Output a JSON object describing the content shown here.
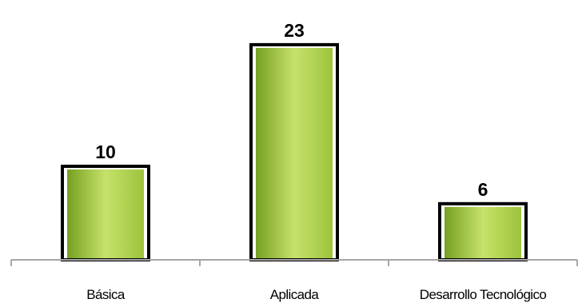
{
  "chart_data": {
    "type": "bar",
    "categories": [
      "Básica",
      "Aplicada",
      "Desarrollo Tecnológico"
    ],
    "values": [
      10,
      23,
      6
    ],
    "title": "",
    "xlabel": "",
    "ylabel": "",
    "ylim": [
      0,
      26
    ],
    "grid": false,
    "legend": "none",
    "data_labels": true
  },
  "colors": {
    "bar_fill_light": "#c6e26a",
    "bar_fill_mid": "#9dc33c",
    "bar_fill_dark": "#76a022",
    "bar_outline": "#000000",
    "axis": "#a6a6a6"
  }
}
